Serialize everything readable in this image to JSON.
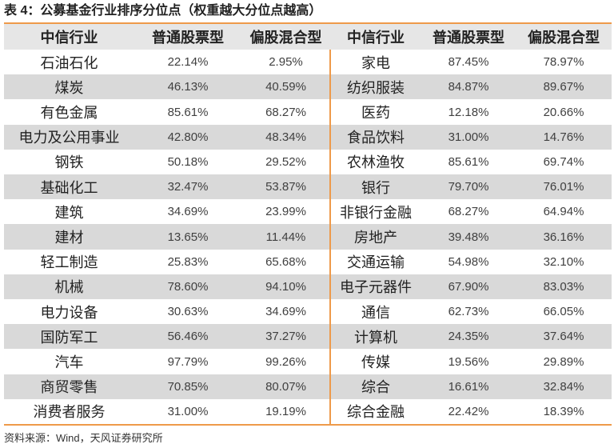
{
  "colors": {
    "accent": "#ee9a4a",
    "stripe": "#d9d9d9",
    "header_bg": "#e6e6e6",
    "text": "#222222",
    "value_text": "#404040"
  },
  "chart_data": {
    "type": "table",
    "title": "表 4：公募基金行业排序分位点（权重越大分位点越高）",
    "columns": [
      "中信行业",
      "普通股票型",
      "偏股混合型",
      "中信行业",
      "普通股票型",
      "偏股混合型"
    ],
    "rows": [
      [
        "石油石化",
        "22.14%",
        "2.95%",
        "家电",
        "87.45%",
        "78.97%"
      ],
      [
        "煤炭",
        "46.13%",
        "40.59%",
        "纺织服装",
        "84.87%",
        "89.67%"
      ],
      [
        "有色金属",
        "85.61%",
        "68.27%",
        "医药",
        "12.18%",
        "20.66%"
      ],
      [
        "电力及公用事业",
        "42.80%",
        "48.34%",
        "食品饮料",
        "31.00%",
        "14.76%"
      ],
      [
        "钢铁",
        "50.18%",
        "29.52%",
        "农林渔牧",
        "85.61%",
        "69.74%"
      ],
      [
        "基础化工",
        "32.47%",
        "53.87%",
        "银行",
        "79.70%",
        "76.01%"
      ],
      [
        "建筑",
        "34.69%",
        "23.99%",
        "非银行金融",
        "68.27%",
        "64.94%"
      ],
      [
        "建材",
        "13.65%",
        "11.44%",
        "房地产",
        "39.48%",
        "36.16%"
      ],
      [
        "轻工制造",
        "25.83%",
        "65.68%",
        "交通运输",
        "54.98%",
        "32.10%"
      ],
      [
        "机械",
        "78.60%",
        "94.10%",
        "电子元器件",
        "67.90%",
        "83.03%"
      ],
      [
        "电力设备",
        "30.63%",
        "34.69%",
        "通信",
        "62.73%",
        "66.05%"
      ],
      [
        "国防军工",
        "56.46%",
        "37.27%",
        "计算机",
        "24.35%",
        "37.64%"
      ],
      [
        "汽车",
        "97.79%",
        "99.26%",
        "传媒",
        "19.56%",
        "29.89%"
      ],
      [
        "商贸零售",
        "70.85%",
        "80.07%",
        "综合",
        "16.61%",
        "32.84%"
      ],
      [
        "消费者服务",
        "31.00%",
        "19.19%",
        "综合金融",
        "22.42%",
        "18.39%"
      ]
    ],
    "source": "资料来源：Wind，天风证券研究所"
  }
}
